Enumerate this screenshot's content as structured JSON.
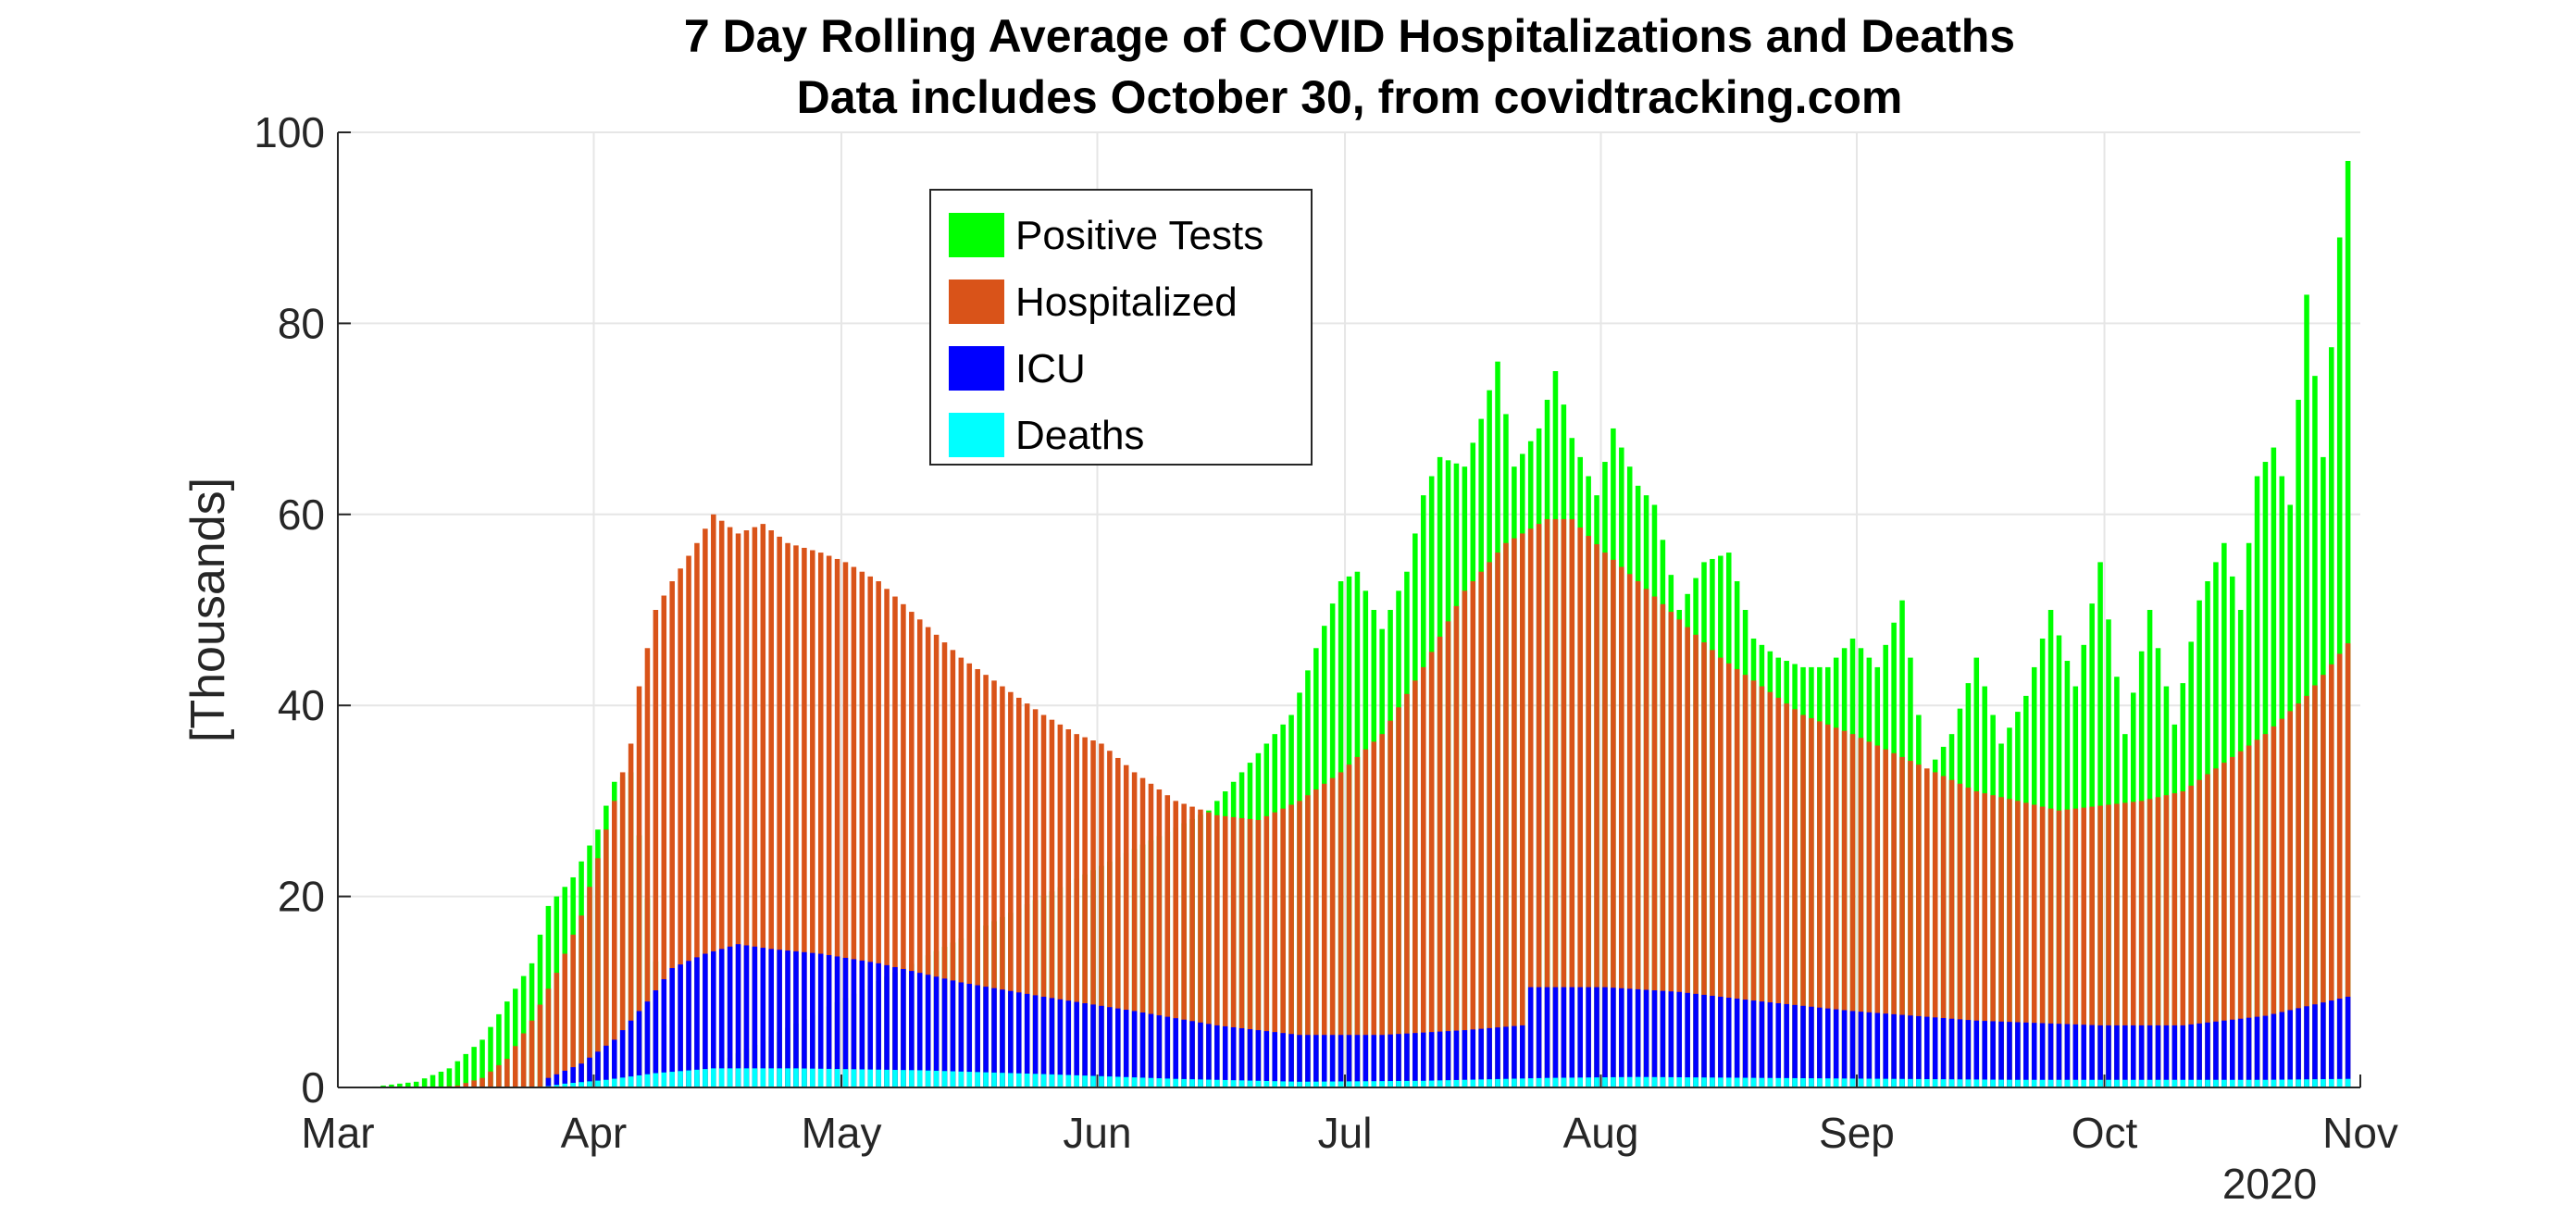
{
  "chart_data": {
    "type": "bar",
    "stacking": "overlaid",
    "title": "7 Day Rolling Average of COVID Hospitalizations and Deaths",
    "subtitle": "Data includes October 30, from covidtracking.com",
    "ylabel": "[Thousands]",
    "xlabel": "",
    "ylim": [
      0,
      100
    ],
    "yticks": [
      "0",
      "20",
      "40",
      "60",
      "80",
      "100"
    ],
    "xlim": [
      "2020-03-01",
      "2020-11-01"
    ],
    "xticks": [
      {
        "label": "Mar",
        "date": "2020-03-01"
      },
      {
        "label": "Apr",
        "date": "2020-04-01"
      },
      {
        "label": "May",
        "date": "2020-05-01"
      },
      {
        "label": "Jun",
        "date": "2020-06-01"
      },
      {
        "label": "Jul",
        "date": "2020-07-01"
      },
      {
        "label": "Aug",
        "date": "2020-08-01"
      },
      {
        "label": "Sep",
        "date": "2020-09-01"
      },
      {
        "label": "Oct",
        "date": "2020-10-01"
      },
      {
        "label": "Nov",
        "date": "2020-11-01"
      }
    ],
    "year_label": "2020",
    "grid": true,
    "legend": {
      "placement": "top-center",
      "entries": [
        "Positive Tests",
        "Hospitalized",
        "ICU",
        "Deaths"
      ]
    },
    "series_colors": {
      "Positive Tests": "#00ff00",
      "Hospitalized": "#d95319",
      "ICU": "#0000ff",
      "Deaths": "#00ffff"
    },
    "series": [
      {
        "name": "Positive Tests",
        "points": [
          [
            "2020-03-01",
            0.0
          ],
          [
            "2020-03-05",
            0.1
          ],
          [
            "2020-03-10",
            0.6
          ],
          [
            "2020-03-14",
            2.0
          ],
          [
            "2020-03-18",
            5.0
          ],
          [
            "2020-03-21",
            9.0
          ],
          [
            "2020-03-24",
            13.0
          ],
          [
            "2020-03-26",
            19.0
          ],
          [
            "2020-03-29",
            22.0
          ],
          [
            "2020-04-01",
            27.0
          ],
          [
            "2020-04-03",
            32.0
          ],
          [
            "2020-04-05",
            33.0
          ],
          [
            "2020-04-10",
            0.0
          ],
          [
            "2020-06-14",
            29.0
          ],
          [
            "2020-06-17",
            32.0
          ],
          [
            "2020-06-20",
            35.0
          ],
          [
            "2020-06-24",
            39.0
          ],
          [
            "2020-06-27",
            46.0
          ],
          [
            "2020-06-30",
            53.0
          ],
          [
            "2020-07-02",
            54.0
          ],
          [
            "2020-07-05",
            48.0
          ],
          [
            "2020-07-08",
            54.0
          ],
          [
            "2020-07-10",
            62.0
          ],
          [
            "2020-07-12",
            66.0
          ],
          [
            "2020-07-15",
            65.0
          ],
          [
            "2020-07-17",
            70.0
          ],
          [
            "2020-07-19",
            76.0
          ],
          [
            "2020-07-21",
            65.0
          ],
          [
            "2020-07-24",
            69.0
          ],
          [
            "2020-07-26",
            75.0
          ],
          [
            "2020-07-28",
            68.0
          ],
          [
            "2020-07-31",
            62.0
          ],
          [
            "2020-08-02",
            69.0
          ],
          [
            "2020-08-05",
            63.0
          ],
          [
            "2020-08-07",
            61.0
          ],
          [
            "2020-08-10",
            50.0
          ],
          [
            "2020-08-13",
            55.0
          ],
          [
            "2020-08-16",
            56.0
          ],
          [
            "2020-08-19",
            47.0
          ],
          [
            "2020-08-22",
            45.0
          ],
          [
            "2020-08-25",
            44.0
          ],
          [
            "2020-08-28",
            44.0
          ],
          [
            "2020-08-31",
            47.0
          ],
          [
            "2020-09-03",
            44.0
          ],
          [
            "2020-09-06",
            51.0
          ],
          [
            "2020-09-09",
            33.0
          ],
          [
            "2020-09-12",
            37.0
          ],
          [
            "2020-09-15",
            45.0
          ],
          [
            "2020-09-18",
            36.0
          ],
          [
            "2020-09-21",
            41.0
          ],
          [
            "2020-09-24",
            50.0
          ],
          [
            "2020-09-27",
            42.0
          ],
          [
            "2020-09-30",
            55.0
          ],
          [
            "2020-10-03",
            37.0
          ],
          [
            "2020-10-06",
            50.0
          ],
          [
            "2020-10-09",
            38.0
          ],
          [
            "2020-10-12",
            51.0
          ],
          [
            "2020-10-15",
            57.0
          ],
          [
            "2020-10-17",
            50.0
          ],
          [
            "2020-10-19",
            64.0
          ],
          [
            "2020-10-21",
            67.0
          ],
          [
            "2020-10-23",
            61.0
          ],
          [
            "2020-10-25",
            83.0
          ],
          [
            "2020-10-27",
            66.0
          ],
          [
            "2020-10-29",
            89.0
          ],
          [
            "2020-10-30",
            97.0
          ]
        ]
      },
      {
        "name": "Hospitalized",
        "points": [
          [
            "2020-03-01",
            0.0
          ],
          [
            "2020-03-12",
            0.0
          ],
          [
            "2020-03-15",
            0.2
          ],
          [
            "2020-03-18",
            1.0
          ],
          [
            "2020-03-21",
            3.0
          ],
          [
            "2020-03-24",
            7.0
          ],
          [
            "2020-03-27",
            12.0
          ],
          [
            "2020-03-30",
            18.0
          ],
          [
            "2020-04-01",
            24.0
          ],
          [
            "2020-04-03",
            30.0
          ],
          [
            "2020-04-05",
            36.0
          ],
          [
            "2020-04-06",
            42.0
          ],
          [
            "2020-04-08",
            50.0
          ],
          [
            "2020-04-10",
            53.0
          ],
          [
            "2020-04-13",
            57.0
          ],
          [
            "2020-04-15",
            60.0
          ],
          [
            "2020-04-18",
            58.0
          ],
          [
            "2020-04-21",
            59.0
          ],
          [
            "2020-04-24",
            57.0
          ],
          [
            "2020-04-28",
            56.0
          ],
          [
            "2020-05-01",
            55.0
          ],
          [
            "2020-05-05",
            53.0
          ],
          [
            "2020-05-10",
            49.0
          ],
          [
            "2020-05-15",
            45.0
          ],
          [
            "2020-05-20",
            42.0
          ],
          [
            "2020-05-25",
            39.0
          ],
          [
            "2020-05-29",
            37.0
          ],
          [
            "2020-06-01",
            36.0
          ],
          [
            "2020-06-05",
            33.0
          ],
          [
            "2020-06-10",
            30.0
          ],
          [
            "2020-06-15",
            28.5
          ],
          [
            "2020-06-20",
            28.0
          ],
          [
            "2020-06-25",
            30.0
          ],
          [
            "2020-06-30",
            33.0
          ],
          [
            "2020-07-05",
            37.0
          ],
          [
            "2020-07-10",
            44.0
          ],
          [
            "2020-07-15",
            52.0
          ],
          [
            "2020-07-20",
            57.0
          ],
          [
            "2020-07-25",
            59.5
          ],
          [
            "2020-07-28",
            59.5
          ],
          [
            "2020-08-01",
            56.0
          ],
          [
            "2020-08-05",
            53.0
          ],
          [
            "2020-08-10",
            49.0
          ],
          [
            "2020-08-15",
            45.0
          ],
          [
            "2020-08-20",
            42.0
          ],
          [
            "2020-08-25",
            39.0
          ],
          [
            "2020-08-31",
            37.0
          ],
          [
            "2020-09-05",
            35.0
          ],
          [
            "2020-09-10",
            33.0
          ],
          [
            "2020-09-15",
            31.0
          ],
          [
            "2020-09-20",
            30.0
          ],
          [
            "2020-09-25",
            29.0
          ],
          [
            "2020-09-30",
            29.5
          ],
          [
            "2020-10-05",
            30.0
          ],
          [
            "2020-10-10",
            31.0
          ],
          [
            "2020-10-15",
            34.0
          ],
          [
            "2020-10-20",
            37.0
          ],
          [
            "2020-10-25",
            41.0
          ],
          [
            "2020-10-30",
            46.5
          ]
        ]
      },
      {
        "name": "ICU",
        "points": [
          [
            "2020-03-01",
            0.0
          ],
          [
            "2020-03-25",
            0.0
          ],
          [
            "2020-03-26",
            1.0
          ],
          [
            "2020-03-30",
            2.5
          ],
          [
            "2020-04-03",
            5.0
          ],
          [
            "2020-04-07",
            9.0
          ],
          [
            "2020-04-10",
            12.5
          ],
          [
            "2020-04-14",
            14.0
          ],
          [
            "2020-04-18",
            15.0
          ],
          [
            "2020-04-22",
            14.5
          ],
          [
            "2020-04-28",
            14.0
          ],
          [
            "2020-05-05",
            13.0
          ],
          [
            "2020-05-15",
            11.0
          ],
          [
            "2020-05-25",
            9.5
          ],
          [
            "2020-06-05",
            8.0
          ],
          [
            "2020-06-15",
            6.5
          ],
          [
            "2020-06-25",
            5.5
          ],
          [
            "2020-07-05",
            5.5
          ],
          [
            "2020-07-15",
            6.0
          ],
          [
            "2020-07-22",
            6.5
          ],
          [
            "2020-07-23",
            10.5
          ],
          [
            "2020-08-01",
            10.5
          ],
          [
            "2020-08-10",
            10.0
          ],
          [
            "2020-08-20",
            9.0
          ],
          [
            "2020-08-31",
            8.0
          ],
          [
            "2020-09-15",
            7.0
          ],
          [
            "2020-09-30",
            6.5
          ],
          [
            "2020-10-10",
            6.5
          ],
          [
            "2020-10-20",
            7.5
          ],
          [
            "2020-10-30",
            9.5
          ]
        ]
      },
      {
        "name": "Deaths",
        "points": [
          [
            "2020-03-01",
            0.0
          ],
          [
            "2020-03-25",
            0.0
          ],
          [
            "2020-03-28",
            0.4
          ],
          [
            "2020-04-02",
            0.8
          ],
          [
            "2020-04-08",
            1.5
          ],
          [
            "2020-04-15",
            2.0
          ],
          [
            "2020-04-25",
            2.0
          ],
          [
            "2020-05-10",
            1.8
          ],
          [
            "2020-05-25",
            1.4
          ],
          [
            "2020-06-10",
            0.9
          ],
          [
            "2020-06-25",
            0.6
          ],
          [
            "2020-07-10",
            0.7
          ],
          [
            "2020-07-25",
            1.0
          ],
          [
            "2020-08-05",
            1.1
          ],
          [
            "2020-08-20",
            1.0
          ],
          [
            "2020-09-05",
            0.9
          ],
          [
            "2020-09-20",
            0.8
          ],
          [
            "2020-10-05",
            0.8
          ],
          [
            "2020-10-20",
            0.8
          ],
          [
            "2020-10-30",
            0.9
          ]
        ]
      }
    ]
  }
}
